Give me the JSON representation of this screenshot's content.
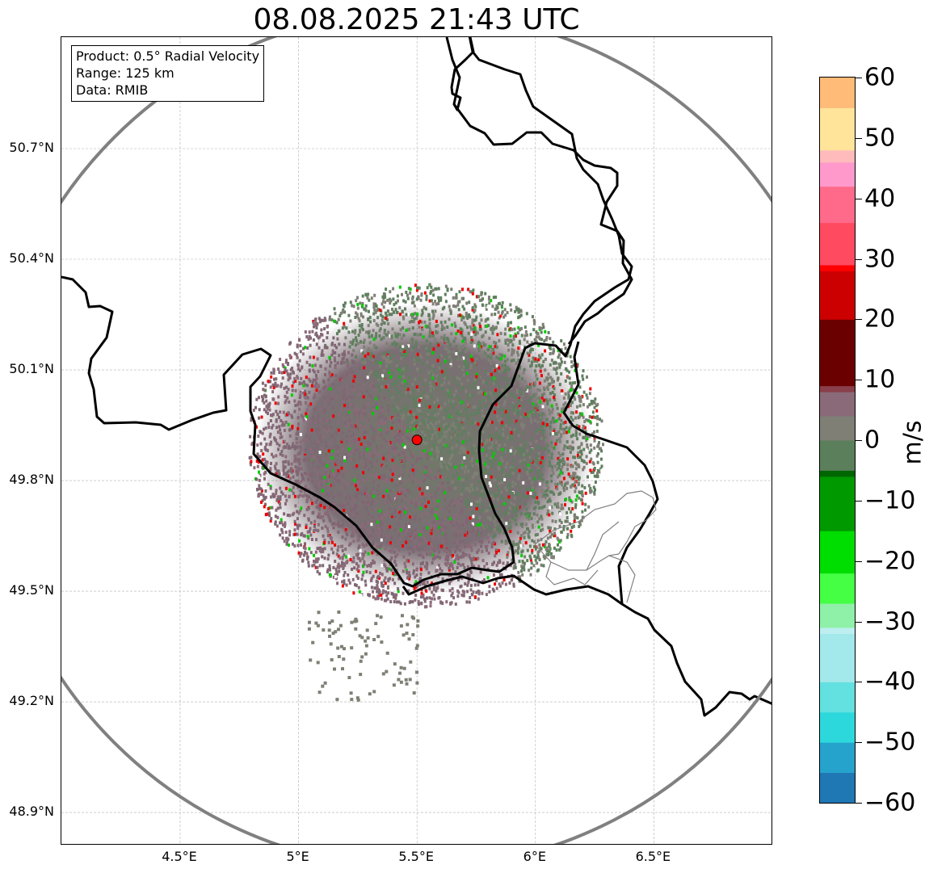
{
  "title": "08.08.2025 21:43 UTC",
  "info": {
    "product": "Product: 0.5° Radial Velocity",
    "range": "Range: 125 km",
    "data": "Data: RMIB"
  },
  "axes": {
    "latitude_labels": [
      {
        "lat": 50.7,
        "text": "50.7°N"
      },
      {
        "lat": 50.4,
        "text": "50.4°N"
      },
      {
        "lat": 50.1,
        "text": "50.1°N"
      },
      {
        "lat": 49.8,
        "text": "49.8°N"
      },
      {
        "lat": 49.5,
        "text": "49.5°N"
      },
      {
        "lat": 49.2,
        "text": "49.2°N"
      },
      {
        "lat": 48.9,
        "text": "48.9°N"
      }
    ],
    "longitude_labels": [
      {
        "lon": 4.5,
        "text": "4.5°E"
      },
      {
        "lon": 5.0,
        "text": "5°E"
      },
      {
        "lon": 5.5,
        "text": "5.5°E"
      },
      {
        "lon": 6.0,
        "text": "6°E"
      },
      {
        "lon": 6.5,
        "text": "6.5°E"
      }
    ],
    "lon_range": [
      4.0,
      7.0
    ],
    "lat_range": [
      48.8,
      51.0
    ],
    "gridlines": true
  },
  "radar": {
    "site_lon": 5.5,
    "site_lat": 49.91,
    "range_km": 125,
    "site_color": "#ff0000",
    "range_ring_color": "#808080"
  },
  "colorbar": {
    "unit": "m/s",
    "min": -60,
    "max": 60,
    "ticks": [
      "60",
      "50",
      "40",
      "30",
      "20",
      "10",
      "0",
      "−10",
      "−20",
      "−30",
      "−40",
      "−50",
      "−60"
    ],
    "tick_values": [
      60,
      50,
      40,
      30,
      20,
      10,
      0,
      -10,
      -20,
      -30,
      -40,
      -50,
      -60
    ],
    "stops": [
      {
        "v": -60,
        "c": "#1f77b4"
      },
      {
        "v": -55,
        "c": "#26a3cc"
      },
      {
        "v": -50,
        "c": "#2dd8dc"
      },
      {
        "v": -45,
        "c": "#63e0e0"
      },
      {
        "v": -40,
        "c": "#a3e8ea"
      },
      {
        "v": -32,
        "c": "#bdeef0"
      },
      {
        "v": -31,
        "c": "#8ff0a8"
      },
      {
        "v": -27,
        "c": "#44ff44"
      },
      {
        "v": -22,
        "c": "#00dd00"
      },
      {
        "v": -15,
        "c": "#009900"
      },
      {
        "v": -6,
        "c": "#006600"
      },
      {
        "v": -5,
        "c": "#5a7f5a"
      },
      {
        "v": 0,
        "c": "#7f7f75"
      },
      {
        "v": 4,
        "c": "#8a6a78"
      },
      {
        "v": 8,
        "c": "#8a3f4a"
      },
      {
        "v": 9,
        "c": "#6b0000"
      },
      {
        "v": 20,
        "c": "#cc0000"
      },
      {
        "v": 28,
        "c": "#ff0000"
      },
      {
        "v": 29,
        "c": "#ff4a60"
      },
      {
        "v": 36,
        "c": "#ff6a8a"
      },
      {
        "v": 42,
        "c": "#ff99cc"
      },
      {
        "v": 46,
        "c": "#ffbbbb"
      },
      {
        "v": 48,
        "c": "#ffe49a"
      },
      {
        "v": 55,
        "c": "#ffbb77"
      },
      {
        "v": 60,
        "c": "#ff9955"
      }
    ]
  }
}
